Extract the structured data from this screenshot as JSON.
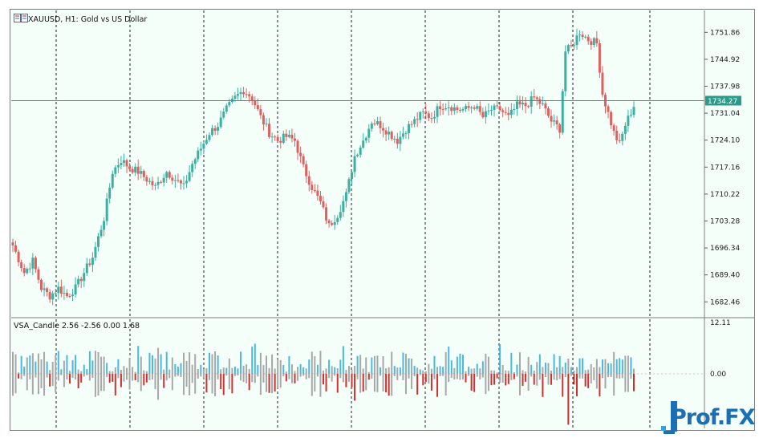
{
  "window": {
    "symbol_title": "XAUUSD, H1:  Gold vs US Dollar",
    "indicator_title": "VSA_Candle 2.56 -2.56 0.00 1.68",
    "current_price": "1734.27"
  },
  "logo": {
    "text": "Prof.FX"
  },
  "colors": {
    "background": "#f5fffa",
    "bull": "#3cb0a0",
    "bear": "#e06060",
    "vol_up": "#4ab8e0",
    "vol_down": "#d03030",
    "vol_neutral": "#a8a8a8",
    "price_line": "#2a9a8a"
  },
  "chart_data": [
    {
      "type": "candlestick",
      "title": "XAUUSD, H1:  Gold vs US Dollar",
      "y_ticks": [
        "1751.86",
        "1744.92",
        "1737.98",
        "1731.04",
        "1724.10",
        "1717.16",
        "1710.22",
        "1703.28",
        "1696.34",
        "1689.40",
        "1682.46"
      ],
      "ylim": [
        1678.6,
        1757.5
      ],
      "current_price": 1734.27,
      "grid": "vertical dashed lines only",
      "x": "hourly bars, approx. 210 candles",
      "close_path": [
        [
          0,
          1697
        ],
        [
          4,
          1690
        ],
        [
          7,
          1693
        ],
        [
          10,
          1686
        ],
        [
          13,
          1684
        ],
        [
          16,
          1686
        ],
        [
          19,
          1684
        ],
        [
          22,
          1686
        ],
        [
          25,
          1690
        ],
        [
          28,
          1694
        ],
        [
          32,
          1704
        ],
        [
          35,
          1716
        ],
        [
          38,
          1719
        ],
        [
          41,
          1717
        ],
        [
          44,
          1716
        ],
        [
          47,
          1714
        ],
        [
          50,
          1712
        ],
        [
          54,
          1716
        ],
        [
          57,
          1714
        ],
        [
          60,
          1712
        ],
        [
          63,
          1718
        ],
        [
          66,
          1722
        ],
        [
          69,
          1726
        ],
        [
          72,
          1728
        ],
        [
          75,
          1732
        ],
        [
          78,
          1735
        ],
        [
          81,
          1737
        ],
        [
          84,
          1735
        ],
        [
          87,
          1730
        ],
        [
          90,
          1726
        ],
        [
          93,
          1724
        ],
        [
          96,
          1725
        ],
        [
          99,
          1724
        ],
        [
          102,
          1717
        ],
        [
          105,
          1712
        ],
        [
          108,
          1708
        ],
        [
          111,
          1702
        ],
        [
          114,
          1705
        ],
        [
          117,
          1710
        ],
        [
          120,
          1720
        ],
        [
          123,
          1724
        ],
        [
          126,
          1729
        ],
        [
          129,
          1728
        ],
        [
          132,
          1726
        ],
        [
          135,
          1724
        ],
        [
          138,
          1727
        ],
        [
          141,
          1729
        ],
        [
          144,
          1731
        ],
        [
          147,
          1730
        ],
        [
          150,
          1733
        ],
        [
          153,
          1733
        ],
        [
          156,
          1732
        ],
        [
          159,
          1732
        ],
        [
          162,
          1733
        ],
        [
          165,
          1730
        ],
        [
          168,
          1732
        ],
        [
          171,
          1732
        ],
        [
          174,
          1730
        ],
        [
          177,
          1733
        ],
        [
          180,
          1733
        ],
        [
          183,
          1735
        ],
        [
          186,
          1733
        ],
        [
          189,
          1729
        ],
        [
          192,
          1727
        ],
        [
          194,
          1747
        ],
        [
          196,
          1748
        ],
        [
          199,
          1752
        ],
        [
          202,
          1750
        ],
        [
          205,
          1749
        ],
        [
          207,
          1736
        ],
        [
          209,
          1731
        ],
        [
          211,
          1726
        ],
        [
          213,
          1723
        ],
        [
          215,
          1728
        ],
        [
          218,
          1733
        ]
      ]
    },
    {
      "type": "bar",
      "title": "VSA_Candle 2.56 -2.56 0.00 1.68",
      "y_ticks": [
        "12.11",
        "0.00"
      ],
      "values_note": "histogram around zero; up bars blue, down bars red, neutral grey; peak about 12 near bar 195"
    }
  ]
}
